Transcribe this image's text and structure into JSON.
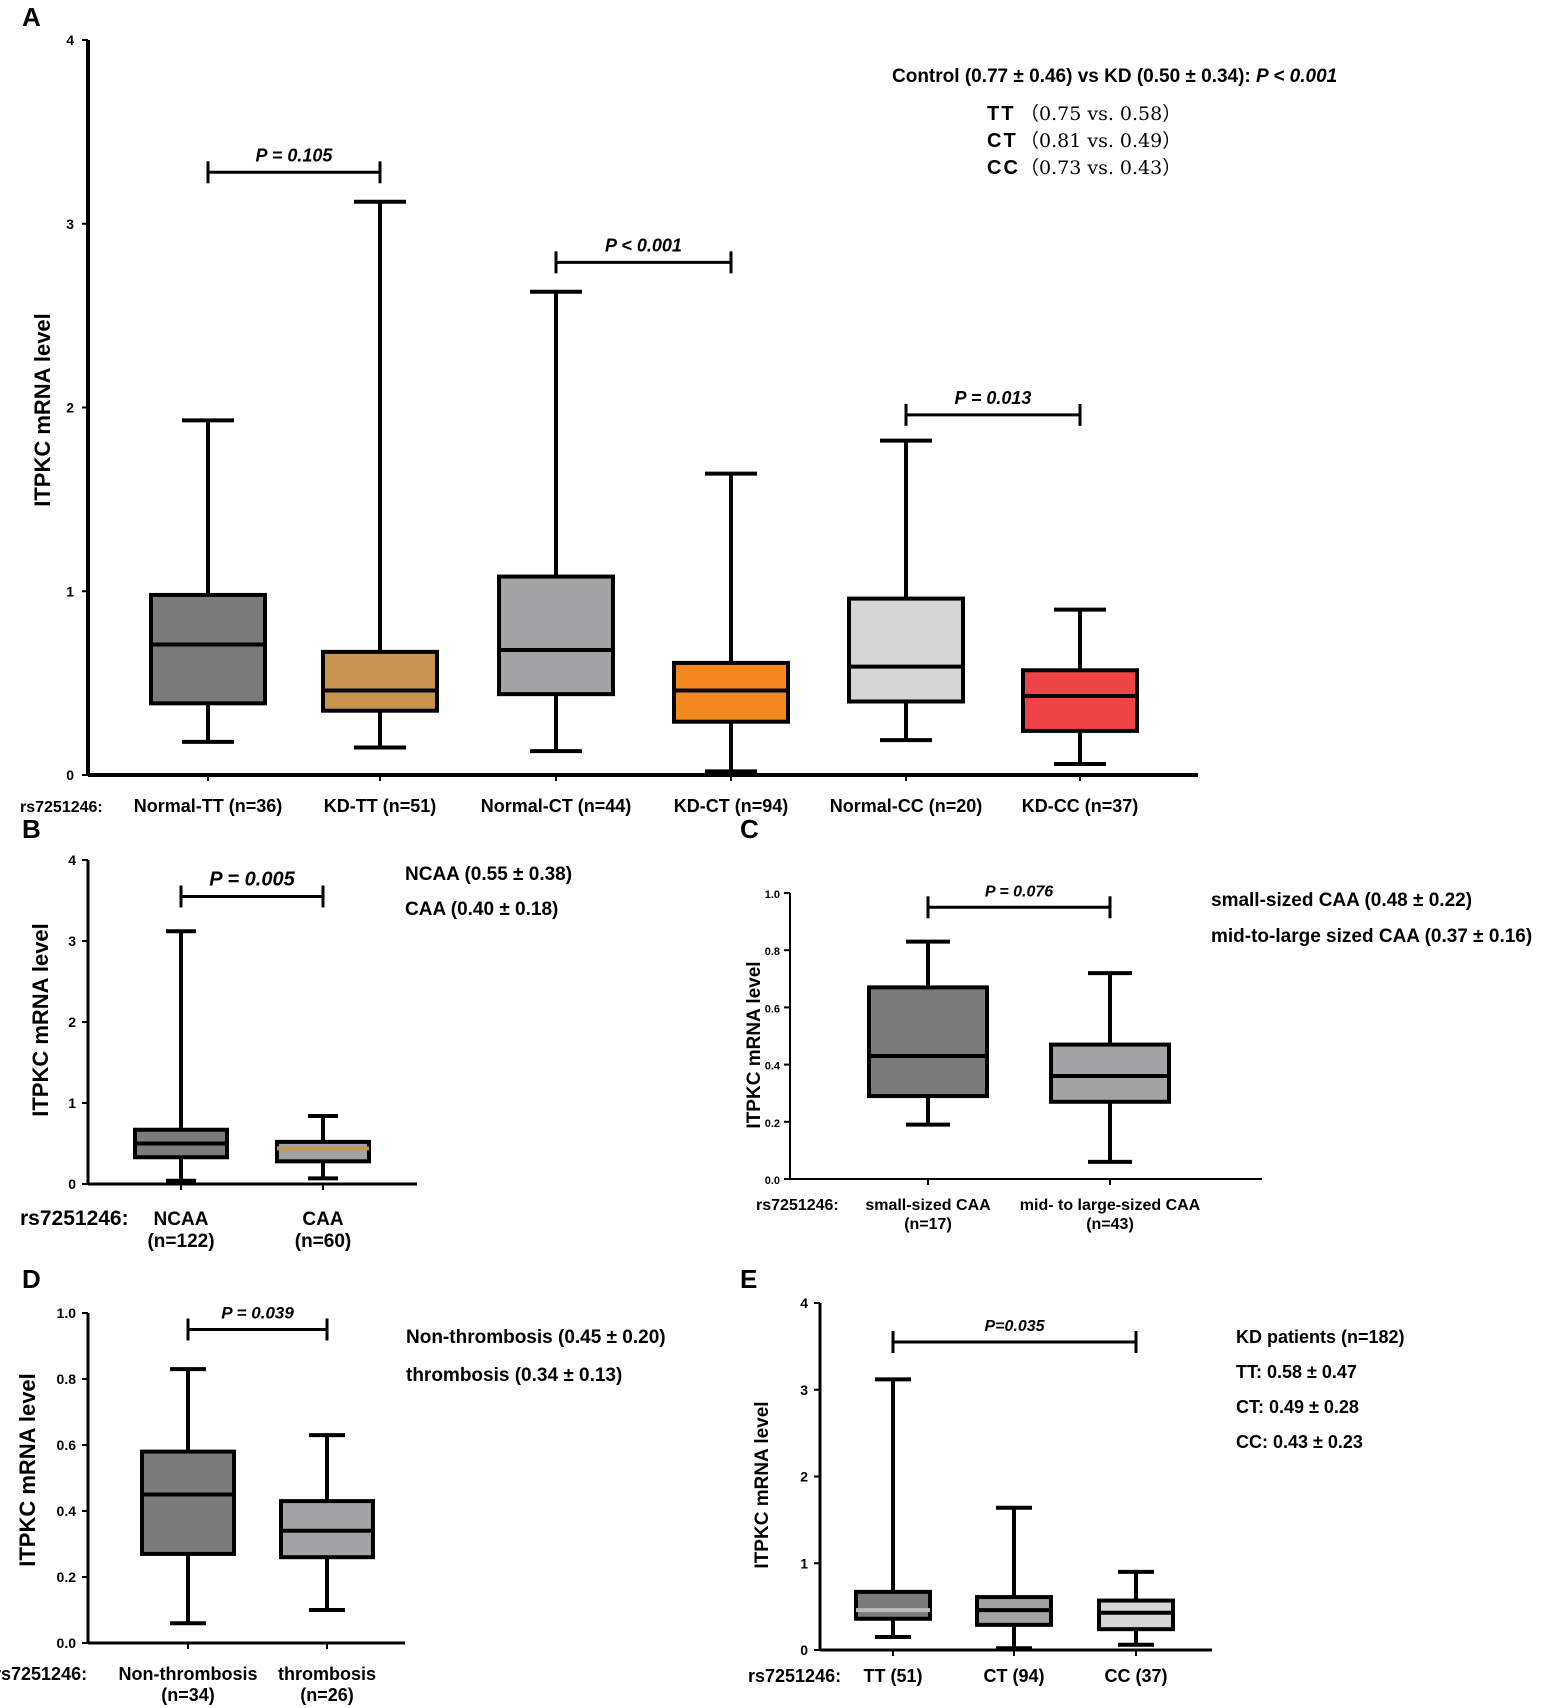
{
  "chart_data": [
    {
      "id": "A",
      "type": "box",
      "panel_label": "A",
      "ylabel": "ITPKC mRNA  level",
      "x_prefix": "rs7251246:",
      "ylim": [
        0,
        4
      ],
      "yticks": [
        "0",
        "1",
        "2",
        "3",
        "4"
      ],
      "series": [
        {
          "name": "Normal-TT (n=36)",
          "min": 0.18,
          "q1": 0.39,
          "median": 0.71,
          "q3": 0.98,
          "max": 1.93,
          "color": "#7b7b7b",
          "median_color": "#000000"
        },
        {
          "name": "KD-TT (n=51)",
          "min": 0.15,
          "q1": 0.35,
          "median": 0.46,
          "q3": 0.67,
          "max": 3.12,
          "color": "#c8954f",
          "median_color": "#000000"
        },
        {
          "name": "Normal-CT (n=44)",
          "min": 0.13,
          "q1": 0.44,
          "median": 0.68,
          "q3": 1.08,
          "max": 2.63,
          "color": "#a3a3a6",
          "median_color": "#000000"
        },
        {
          "name": "KD-CT (n=94)",
          "min": 0.02,
          "q1": 0.29,
          "median": 0.46,
          "q3": 0.61,
          "max": 1.64,
          "color": "#f5871f",
          "median_color": "#000000"
        },
        {
          "name": "Normal-CC (n=20)",
          "min": 0.19,
          "q1": 0.4,
          "median": 0.59,
          "q3": 0.96,
          "max": 1.82,
          "color": "#d6d6d6",
          "median_color": "#000000"
        },
        {
          "name": "KD-CC (n=37)",
          "min": 0.06,
          "q1": 0.24,
          "median": 0.43,
          "q3": 0.57,
          "max": 0.9,
          "color": "#ee4445",
          "median_color": "#000000"
        }
      ],
      "comparisons": [
        {
          "from": 0,
          "to": 1,
          "label": "P = 0.105",
          "y": 3.28
        },
        {
          "from": 2,
          "to": 3,
          "label": "P < 0.001",
          "y": 2.79
        },
        {
          "from": 4,
          "to": 5,
          "label": "P = 0.013",
          "y": 1.96
        }
      ],
      "annotations": {
        "summary_prefix": "Control (0.77 ± 0.46) vs KD (0.50 ± 0.34): ",
        "summary_p": "P < 0.001",
        "genotypes": [
          {
            "geno": "TT",
            "values": "（0.75  vs. 0.58）"
          },
          {
            "geno": "CT",
            "values": "（0.81  vs. 0.49）"
          },
          {
            "geno": "CC",
            "values": "（0.73  vs. 0.43）"
          }
        ]
      }
    },
    {
      "id": "B",
      "type": "box",
      "panel_label": "B",
      "ylabel": "ITPKC mRNA  level",
      "x_prefix": "rs7251246:",
      "ylim": [
        0,
        4
      ],
      "yticks": [
        "0",
        "1",
        "2",
        "3",
        "4"
      ],
      "series": [
        {
          "name": "NCAA",
          "n": "(n=122)",
          "min": 0.04,
          "q1": 0.33,
          "median": 0.5,
          "q3": 0.67,
          "max": 3.12,
          "color": "#7b7b7b",
          "median_color": "#000000"
        },
        {
          "name": "CAA",
          "n": "(n=60)",
          "min": 0.07,
          "q1": 0.28,
          "median": 0.44,
          "q3": 0.52,
          "max": 0.84,
          "color": "#a3a3a6",
          "median_color": "#c8954f"
        }
      ],
      "comparisons": [
        {
          "from": 0,
          "to": 1,
          "label": "P = 0.005",
          "y": 3.55
        }
      ],
      "annotations": [
        "NCAA (0.55 ± 0.38)",
        "CAA (0.40 ± 0.18)"
      ]
    },
    {
      "id": "C",
      "type": "box",
      "panel_label": "C",
      "ylabel": "ITPKC mRNA  level",
      "x_prefix": "rs7251246:",
      "ylim": [
        0,
        1.0
      ],
      "yticks": [
        "0.0",
        "0.2",
        "0.4",
        "0.6",
        "0.8",
        "1.0"
      ],
      "series": [
        {
          "name": "small-sized CAA",
          "n": "(n=17)",
          "min": 0.19,
          "q1": 0.29,
          "median": 0.43,
          "q3": 0.67,
          "max": 0.83,
          "color": "#7b7b7b",
          "median_color": "#000000"
        },
        {
          "name": "mid- to large-sized CAA",
          "n": "(n=43)",
          "min": 0.06,
          "q1": 0.27,
          "median": 0.36,
          "q3": 0.47,
          "max": 0.72,
          "color": "#a3a3a6",
          "median_color": "#000000"
        }
      ],
      "comparisons": [
        {
          "from": 0,
          "to": 1,
          "label": "P = 0.076",
          "y": 0.95
        }
      ],
      "annotations": [
        "small-sized CAA (0.48 ± 0.22)",
        "mid-to-large sized CAA (0.37 ± 0.16)"
      ]
    },
    {
      "id": "D",
      "type": "box",
      "panel_label": "D",
      "ylabel": "ITPKC mRNA level",
      "x_prefix": "rs7251246:",
      "ylim": [
        0,
        1.0
      ],
      "yticks": [
        "0.0",
        "0.2",
        "0.4",
        "0.6",
        "0.8",
        "1.0"
      ],
      "series": [
        {
          "name": "Non-thrombosis",
          "n": "(n=34)",
          "min": 0.06,
          "q1": 0.27,
          "median": 0.45,
          "q3": 0.58,
          "max": 0.83,
          "color": "#7b7b7b",
          "median_color": "#000000"
        },
        {
          "name": "thrombosis",
          "n": "(n=26)",
          "min": 0.1,
          "q1": 0.26,
          "median": 0.34,
          "q3": 0.43,
          "max": 0.63,
          "color": "#a3a3a6",
          "median_color": "#000000"
        }
      ],
      "comparisons": [
        {
          "from": 0,
          "to": 1,
          "label": "P = 0.039",
          "y": 0.95
        }
      ],
      "annotations": [
        "Non-thrombosis (0.45 ± 0.20)",
        "thrombosis (0.34 ± 0.13)"
      ]
    },
    {
      "id": "E",
      "type": "box",
      "panel_label": "E",
      "ylabel": "ITPKC mRNA  level",
      "x_prefix": "rs7251246:",
      "ylim": [
        0,
        4
      ],
      "yticks": [
        "0",
        "1",
        "2",
        "3",
        "4"
      ],
      "series": [
        {
          "name": "TT (51)",
          "min": 0.15,
          "q1": 0.36,
          "median": 0.46,
          "q3": 0.67,
          "max": 3.12,
          "color": "#7b7b7b",
          "median_color": "#bbbbbb"
        },
        {
          "name": "CT (94)",
          "min": 0.02,
          "q1": 0.29,
          "median": 0.46,
          "q3": 0.61,
          "max": 1.64,
          "color": "#a3a3a6",
          "median_color": "#000000"
        },
        {
          "name": "CC (37)",
          "min": 0.06,
          "q1": 0.24,
          "median": 0.43,
          "q3": 0.57,
          "max": 0.9,
          "color": "#d6d6d6",
          "median_color": "#000000"
        }
      ],
      "comparisons": [
        {
          "from": 0,
          "to": 2,
          "label": "P=0.035",
          "y": 3.55
        }
      ],
      "annotations": [
        "KD patients (n=182)",
        "TT: 0.58 ± 0.47",
        "CT: 0.49 ± 0.28",
        "CC: 0.43 ± 0.23"
      ]
    }
  ]
}
